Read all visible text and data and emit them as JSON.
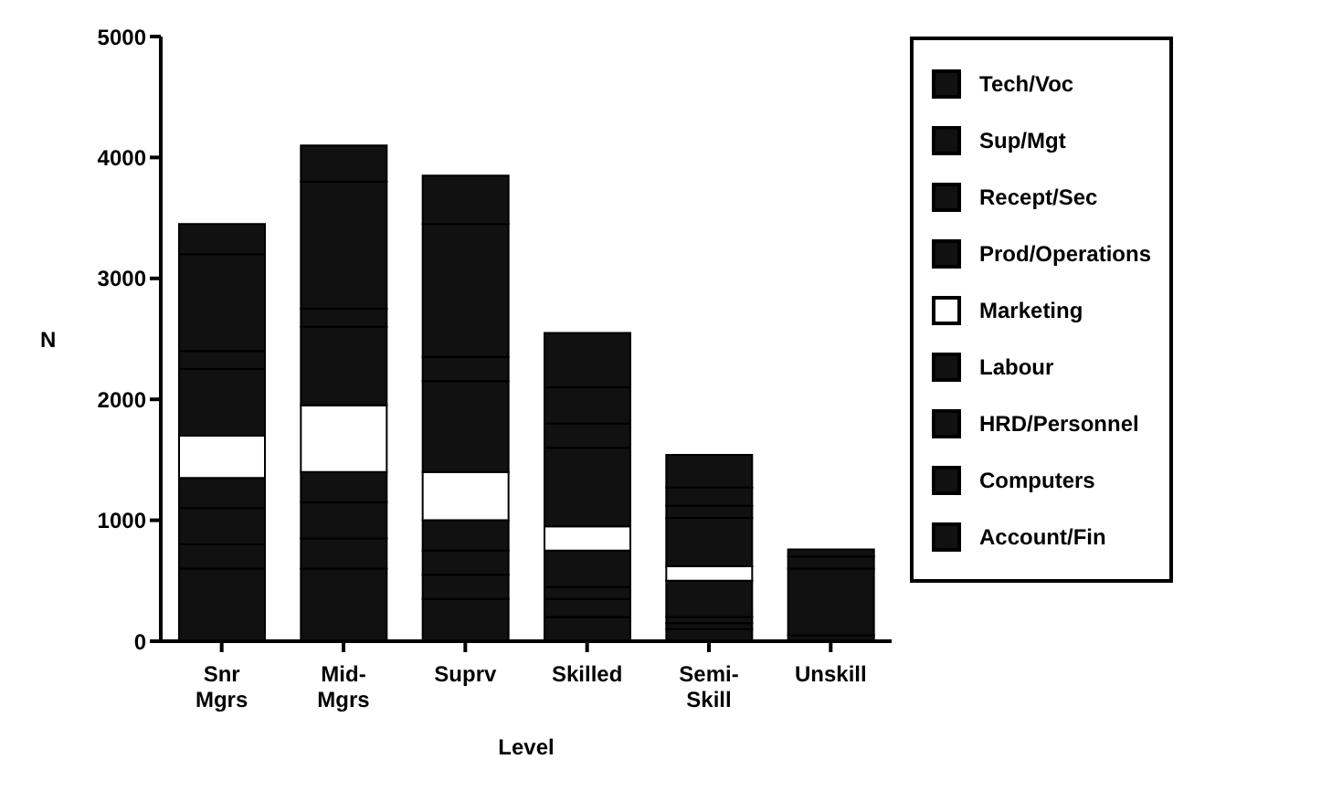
{
  "chart_data": {
    "type": "bar",
    "stacked": true,
    "xlabel": "Level",
    "ylabel": "N",
    "categories": [
      "Snr\nMgrs",
      "Mid-\nMgrs",
      "Suprv",
      "Skilled",
      "Semi-\nSkill",
      "Unskill"
    ],
    "ylim": [
      0,
      5000
    ],
    "yticks": [
      0,
      1000,
      2000,
      3000,
      4000,
      5000
    ],
    "grid": false,
    "legend": "right",
    "series": [
      {
        "name": "Account/Fin",
        "color": "#111111",
        "values": [
          600,
          600,
          350,
          200,
          100,
          50
        ]
      },
      {
        "name": "Computers",
        "color": "#111111",
        "values": [
          200,
          250,
          200,
          150,
          50,
          0
        ]
      },
      {
        "name": "HRD/Personnel",
        "color": "#111111",
        "values": [
          300,
          300,
          200,
          100,
          50,
          0
        ]
      },
      {
        "name": "Labour",
        "color": "#111111",
        "values": [
          250,
          250,
          250,
          300,
          300,
          550
        ]
      },
      {
        "name": "Marketing",
        "color": "#ffffff",
        "values": [
          350,
          550,
          400,
          200,
          120,
          0
        ]
      },
      {
        "name": "Prod/Operations",
        "color": "#111111",
        "values": [
          550,
          650,
          750,
          650,
          400,
          100
        ]
      },
      {
        "name": "Recept/Sec",
        "color": "#111111",
        "values": [
          150,
          150,
          200,
          200,
          100,
          60
        ]
      },
      {
        "name": "Sup/Mgt",
        "color": "#111111",
        "values": [
          800,
          1050,
          1100,
          300,
          150,
          0
        ]
      },
      {
        "name": "Tech/Voc",
        "color": "#111111",
        "values": [
          250,
          300,
          400,
          450,
          270,
          0
        ]
      }
    ]
  }
}
